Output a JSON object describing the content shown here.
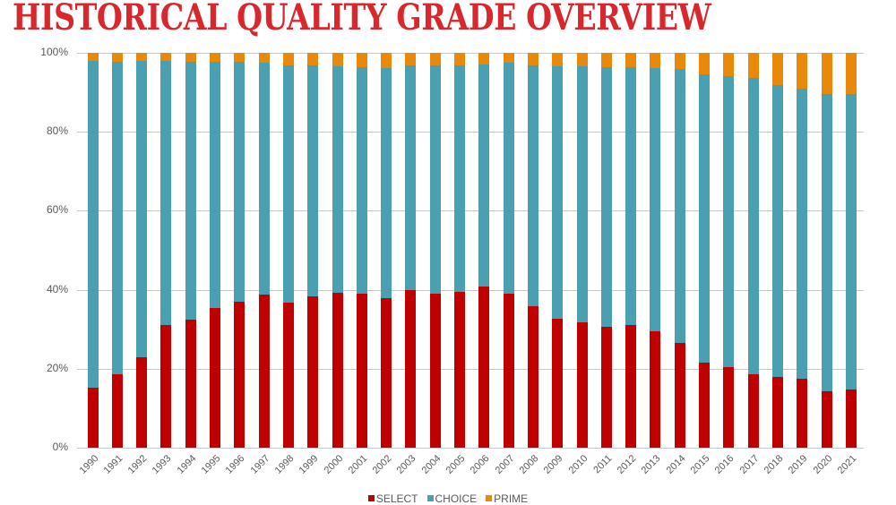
{
  "page": {
    "title": "HISTORICAL QUALITY GRADE OVERVIEW"
  },
  "colors": {
    "title": "#D9272E",
    "select": "#C00000",
    "choice": "#4A9FB0",
    "prime": "#E8890C"
  },
  "chart_data": {
    "type": "bar",
    "stacked": true,
    "percent_stacked": true,
    "title": "HISTORICAL QUALITY GRADE OVERVIEW",
    "xlabel": "",
    "ylabel": "",
    "ylim": [
      0,
      100
    ],
    "yticks": [
      "0%",
      "20%",
      "40%",
      "60%",
      "80%",
      "100%"
    ],
    "grid": true,
    "legend_position": "bottom",
    "categories": [
      "1990",
      "1991",
      "1992",
      "1993",
      "1994",
      "1995",
      "1996",
      "1997",
      "1998",
      "1999",
      "2000",
      "2001",
      "2002",
      "2003",
      "2004",
      "2005",
      "2006",
      "2007",
      "2008",
      "2009",
      "2010",
      "2011",
      "2012",
      "2013",
      "2014",
      "2015",
      "2016",
      "2017",
      "2018",
      "2019",
      "2020",
      "2021"
    ],
    "series": [
      {
        "name": "SELECT",
        "color": "#C00000",
        "values": [
          15.3,
          18.5,
          23.0,
          31.0,
          32.4,
          35.3,
          36.9,
          38.7,
          36.8,
          38.4,
          39.2,
          39.1,
          37.8,
          39.8,
          39.1,
          39.5,
          40.8,
          39.1,
          35.8,
          32.7,
          31.7,
          30.7,
          31.0,
          29.5,
          26.5,
          21.5,
          20.4,
          18.5,
          17.9,
          17.4,
          14.2,
          14.7
        ]
      },
      {
        "name": "CHOICE",
        "color": "#4A9FB0",
        "values": [
          82.6,
          79.2,
          74.9,
          66.9,
          65.3,
          62.4,
          60.8,
          58.8,
          60.1,
          58.5,
          57.5,
          57.3,
          58.3,
          57.1,
          57.8,
          57.4,
          56.3,
          58.3,
          61.1,
          64.0,
          64.9,
          65.7,
          65.4,
          66.6,
          69.5,
          73.1,
          73.7,
          75.1,
          73.9,
          73.5,
          75.4,
          74.9
        ]
      },
      {
        "name": "PRIME",
        "color": "#E8890C",
        "values": [
          2.1,
          2.3,
          2.1,
          2.1,
          2.3,
          2.3,
          2.3,
          2.5,
          3.1,
          3.1,
          3.3,
          3.6,
          3.9,
          3.1,
          3.1,
          3.1,
          2.9,
          2.6,
          3.1,
          3.3,
          3.4,
          3.6,
          3.6,
          3.9,
          4.0,
          5.4,
          5.9,
          6.4,
          8.2,
          9.1,
          10.4,
          10.4
        ]
      }
    ]
  },
  "legend": [
    {
      "label": "SELECT",
      "color": "#C00000"
    },
    {
      "label": "CHOICE",
      "color": "#4A9FB0"
    },
    {
      "label": "PRIME",
      "color": "#E8890C"
    }
  ]
}
